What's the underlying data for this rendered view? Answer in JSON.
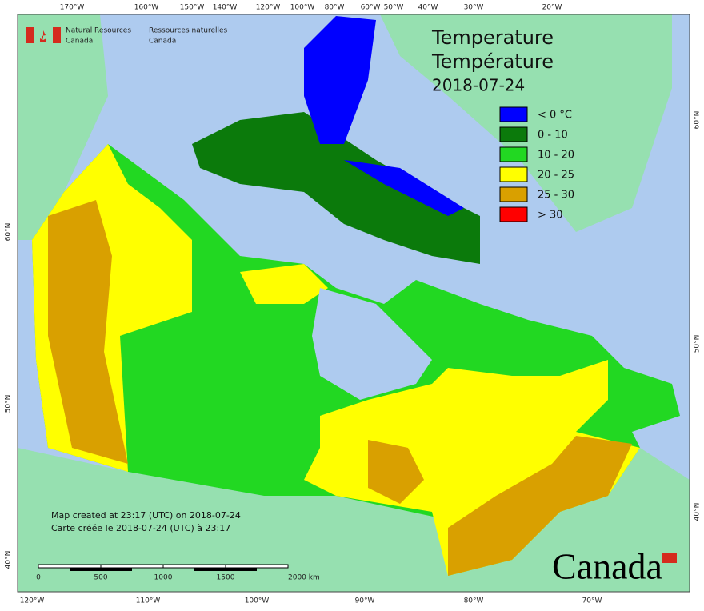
{
  "header": {
    "department_en": [
      "Natural Resources",
      "Canada"
    ],
    "department_fr": [
      "Ressources naturelles",
      "Canada"
    ]
  },
  "title": [
    "Temperature",
    "Température"
  ],
  "date": "2018-07-24",
  "legend": [
    {
      "label": "< 0 °C",
      "color": "#0000ff"
    },
    {
      "label": "0 - 10",
      "color": "#0b7a0b"
    },
    {
      "label": "10 - 20",
      "color": "#22d822"
    },
    {
      "label": "20 - 25",
      "color": "#ffff00"
    },
    {
      "label": "25 - 30",
      "color": "#d9a000"
    },
    {
      "label": "> 30",
      "color": "#ff0000"
    }
  ],
  "top_longitudes": [
    "170°W",
    "160°W",
    "150°W",
    "140°W",
    "120°W",
    "100°W",
    "80°W",
    "60°W",
    "50°W",
    "40°W",
    "30°W",
    "20°W"
  ],
  "bottom_longitudes": [
    "120°W",
    "110°W",
    "100°W",
    "90°W",
    "80°W",
    "70°W"
  ],
  "left_latitudes": [
    "60°N",
    "50°N",
    "40°N"
  ],
  "right_latitudes": [
    "60°N",
    "50°N",
    "40°N"
  ],
  "credits": [
    "Map created at 23:17 (UTC) on 2018-07-24",
    "Carte créée le 2018-07-24 (UTC) à 23:17"
  ],
  "scale": [
    "0",
    "500",
    "1000",
    "1500",
    "2000 km"
  ],
  "wordmark": "Canada"
}
